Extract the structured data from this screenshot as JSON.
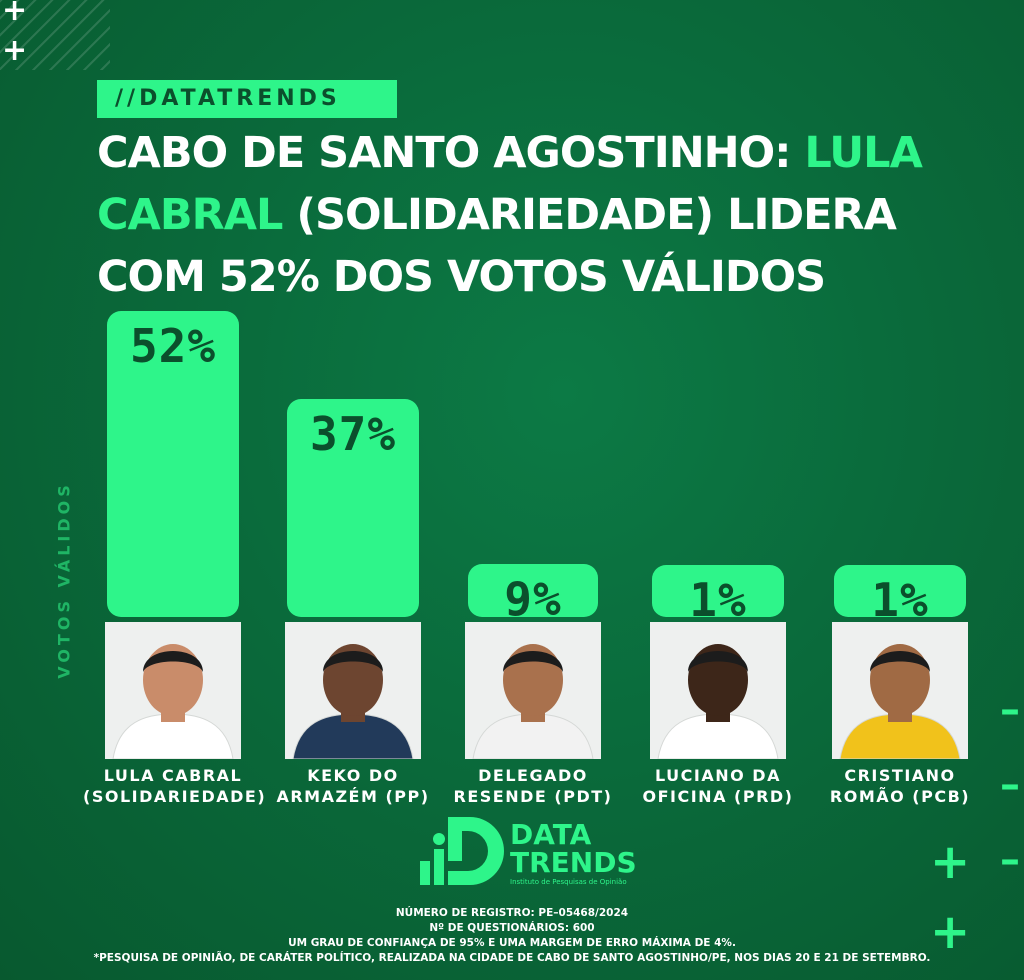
{
  "tag": "//DATATRENDS",
  "headline": {
    "part1": "CABO DE SANTO AGOSTINHO: ",
    "part2": "LULA CABRAL",
    "part3": " (SOLIDARIEDADE) LIDERA COM 52% DOS VOTOS VÁLIDOS"
  },
  "colors": {
    "accent": "#2ef58a",
    "background": "#0a6a3b",
    "dark_text": "#0b4f2c"
  },
  "chart_data": {
    "type": "bar",
    "ylabel": "VOTOS VÁLIDOS",
    "categories": [
      "LULA CABRAL\n(SOLIDARIEDADE)",
      "KEKO DO\nARMAZÉM (PP)",
      "DELEGADO\nRESENDE (PDT)",
      "LUCIANO DA\nOFICINA (PRD)",
      "CRISTIANO\nROMÃO (PCB)"
    ],
    "values": [
      52,
      37,
      9,
      1,
      1
    ],
    "value_labels": [
      "52%",
      "37%",
      "9%",
      "1%",
      "1%"
    ],
    "ylim": [
      0,
      52
    ]
  },
  "logo": {
    "title": "DATA\nTRENDS",
    "subtitle": "Instituto de Pesquisas de Opinião"
  },
  "footer": {
    "registro": "NÚMERO DE REGISTRO: PE–05468/2024",
    "questionarios": "Nº DE QUESTIONÁRIOS: 600",
    "confianca": "UM GRAU DE CONFIANÇA DE 95% E UMA MARGEM DE ERRO MÁXIMA DE 4%.",
    "nota": "*PESQUISA DE OPINIÃO, DE CARÁTER POLÍTICO, REALIZADA NA CIDADE DE CABO DE SANTO AGOSTINHO/PE, NOS DIAS 20 E 21 DE SETEMBRO."
  }
}
